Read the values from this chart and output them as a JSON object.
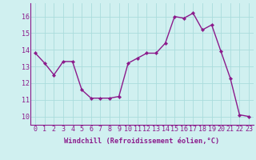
{
  "x": [
    0,
    1,
    2,
    3,
    4,
    5,
    6,
    7,
    8,
    9,
    10,
    11,
    12,
    13,
    14,
    15,
    16,
    17,
    18,
    19,
    20,
    21,
    22,
    23
  ],
  "y": [
    13.8,
    13.2,
    12.5,
    13.3,
    13.3,
    11.6,
    11.1,
    11.1,
    11.1,
    11.2,
    13.2,
    13.5,
    13.8,
    13.8,
    14.4,
    16.0,
    15.9,
    16.2,
    15.2,
    15.5,
    13.9,
    12.3,
    10.1,
    10.0
  ],
  "line_color": "#8b1a8b",
  "marker": "D",
  "marker_size": 2.2,
  "bg_color": "#d0f0f0",
  "grid_color": "#aadcdc",
  "xlabel": "Windchill (Refroidissement éolien,°C)",
  "xlabel_fontsize": 6.2,
  "xtick_labels": [
    "0",
    "1",
    "2",
    "3",
    "4",
    "5",
    "6",
    "7",
    "8",
    "9",
    "10",
    "11",
    "12",
    "13",
    "14",
    "15",
    "16",
    "17",
    "18",
    "19",
    "20",
    "21",
    "22",
    "23"
  ],
  "ytick_labels": [
    "10",
    "11",
    "12",
    "13",
    "14",
    "15",
    "16"
  ],
  "ylim": [
    9.5,
    16.8
  ],
  "xlim": [
    -0.5,
    23.5
  ],
  "tick_fontsize": 6.0,
  "line_width": 1.0,
  "spine_color": "#8b1a8b"
}
